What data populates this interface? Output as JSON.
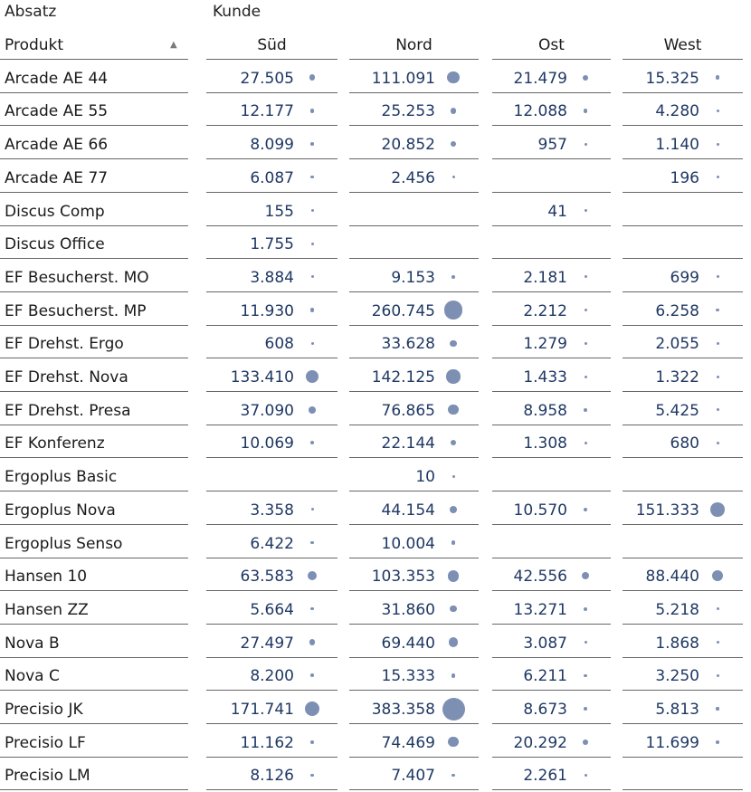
{
  "header": {
    "measure_label": "Absatz",
    "dimension_label": "Kunde",
    "product_column_label": "Produkt",
    "sort_indicator": "▲",
    "regions": [
      "Süd",
      "Nord",
      "Ost",
      "West"
    ]
  },
  "bubble_color": "#7d8fb3",
  "value_color": "#1f3864",
  "rows": [
    {
      "product": "Arcade AE 44",
      "values": [
        {
          "text": "27.505",
          "value": 27505
        },
        {
          "text": "111.091",
          "value": 111091
        },
        {
          "text": "21.479",
          "value": 21479
        },
        {
          "text": "15.325",
          "value": 15325
        }
      ]
    },
    {
      "product": "Arcade AE 55",
      "values": [
        {
          "text": "12.177",
          "value": 12177
        },
        {
          "text": "25.253",
          "value": 25253
        },
        {
          "text": "12.088",
          "value": 12088
        },
        {
          "text": "4.280",
          "value": 4280
        }
      ]
    },
    {
      "product": "Arcade AE 66",
      "values": [
        {
          "text": "8.099",
          "value": 8099
        },
        {
          "text": "20.852",
          "value": 20852
        },
        {
          "text": "957",
          "value": 957
        },
        {
          "text": "1.140",
          "value": 1140
        }
      ]
    },
    {
      "product": "Arcade AE 77",
      "values": [
        {
          "text": "6.087",
          "value": 6087
        },
        {
          "text": "2.456",
          "value": 2456
        },
        null,
        {
          "text": "196",
          "value": 196
        }
      ]
    },
    {
      "product": "Discus Comp",
      "values": [
        {
          "text": "155",
          "value": 155
        },
        null,
        {
          "text": "41",
          "value": 41
        },
        null
      ]
    },
    {
      "product": "Discus Office",
      "values": [
        {
          "text": "1.755",
          "value": 1755
        },
        null,
        null,
        null
      ]
    },
    {
      "product": "EF Besucherst. MO",
      "values": [
        {
          "text": "3.884",
          "value": 3884
        },
        {
          "text": "9.153",
          "value": 9153
        },
        {
          "text": "2.181",
          "value": 2181
        },
        {
          "text": "699",
          "value": 699
        }
      ]
    },
    {
      "product": "EF Besucherst. MP",
      "values": [
        {
          "text": "11.930",
          "value": 11930
        },
        {
          "text": "260.745",
          "value": 260745
        },
        {
          "text": "2.212",
          "value": 2212
        },
        {
          "text": "6.258",
          "value": 6258
        }
      ]
    },
    {
      "product": "EF Drehst. Ergo",
      "values": [
        {
          "text": "608",
          "value": 608
        },
        {
          "text": "33.628",
          "value": 33628
        },
        {
          "text": "1.279",
          "value": 1279
        },
        {
          "text": "2.055",
          "value": 2055
        }
      ]
    },
    {
      "product": "EF Drehst. Nova",
      "values": [
        {
          "text": "133.410",
          "value": 133410
        },
        {
          "text": "142.125",
          "value": 142125
        },
        {
          "text": "1.433",
          "value": 1433
        },
        {
          "text": "1.322",
          "value": 1322
        }
      ]
    },
    {
      "product": "EF Drehst. Presa",
      "values": [
        {
          "text": "37.090",
          "value": 37090
        },
        {
          "text": "76.865",
          "value": 76865
        },
        {
          "text": "8.958",
          "value": 8958
        },
        {
          "text": "5.425",
          "value": 5425
        }
      ]
    },
    {
      "product": "EF Konferenz",
      "values": [
        {
          "text": "10.069",
          "value": 10069
        },
        {
          "text": "22.144",
          "value": 22144
        },
        {
          "text": "1.308",
          "value": 1308
        },
        {
          "text": "680",
          "value": 680
        }
      ]
    },
    {
      "product": "Ergoplus Basic",
      "values": [
        null,
        {
          "text": "10",
          "value": 10
        },
        null,
        null
      ]
    },
    {
      "product": "Ergoplus Nova",
      "values": [
        {
          "text": "3.358",
          "value": 3358
        },
        {
          "text": "44.154",
          "value": 44154
        },
        {
          "text": "10.570",
          "value": 10570
        },
        {
          "text": "151.333",
          "value": 151333
        }
      ]
    },
    {
      "product": "Ergoplus Senso",
      "values": [
        {
          "text": "6.422",
          "value": 6422
        },
        {
          "text": "10.004",
          "value": 10004
        },
        null,
        null
      ]
    },
    {
      "product": "Hansen 10",
      "values": [
        {
          "text": "63.583",
          "value": 63583
        },
        {
          "text": "103.353",
          "value": 103353
        },
        {
          "text": "42.556",
          "value": 42556
        },
        {
          "text": "88.440",
          "value": 88440
        }
      ]
    },
    {
      "product": "Hansen ZZ",
      "values": [
        {
          "text": "5.664",
          "value": 5664
        },
        {
          "text": "31.860",
          "value": 31860
        },
        {
          "text": "13.271",
          "value": 13271
        },
        {
          "text": "5.218",
          "value": 5218
        }
      ]
    },
    {
      "product": "Nova B",
      "values": [
        {
          "text": "27.497",
          "value": 27497
        },
        {
          "text": "69.440",
          "value": 69440
        },
        {
          "text": "3.087",
          "value": 3087
        },
        {
          "text": "1.868",
          "value": 1868
        }
      ]
    },
    {
      "product": "Nova C",
      "values": [
        {
          "text": "8.200",
          "value": 8200
        },
        {
          "text": "15.333",
          "value": 15333
        },
        {
          "text": "6.211",
          "value": 6211
        },
        {
          "text": "3.250",
          "value": 3250
        }
      ]
    },
    {
      "product": "Precisio JK",
      "values": [
        {
          "text": "171.741",
          "value": 171741
        },
        {
          "text": "383.358",
          "value": 383358
        },
        {
          "text": "8.673",
          "value": 8673
        },
        {
          "text": "5.813",
          "value": 5813
        }
      ]
    },
    {
      "product": "Precisio LF",
      "values": [
        {
          "text": "11.162",
          "value": 11162
        },
        {
          "text": "74.469",
          "value": 74469
        },
        {
          "text": "20.292",
          "value": 20292
        },
        {
          "text": "11.699",
          "value": 11699
        }
      ]
    },
    {
      "product": "Precisio LM",
      "values": [
        {
          "text": "8.126",
          "value": 8126
        },
        {
          "text": "7.407",
          "value": 7407
        },
        {
          "text": "2.261",
          "value": 2261
        },
        null
      ]
    }
  ]
}
